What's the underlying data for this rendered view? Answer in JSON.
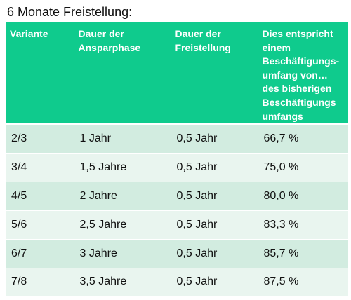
{
  "title": "6 Monate Freistellung:",
  "table": {
    "headers": [
      "Variante",
      "Dauer der Ansparphase",
      "Dauer der Freistellung",
      "Dies entspricht einem Beschäftigungs­umfang von… des bisherigen Beschäftigungs umfangs"
    ],
    "rows": [
      [
        "2/3",
        "1 Jahr",
        "0,5 Jahr",
        "66,7 %"
      ],
      [
        "3/4",
        "1,5 Jahre",
        "0,5 Jahr",
        "75,0 %"
      ],
      [
        "4/5",
        "2 Jahre",
        "0,5 Jahr",
        "80,0 %"
      ],
      [
        "5/6",
        "2,5 Jahre",
        "0,5 Jahr",
        "83,3 %"
      ],
      [
        "6/7",
        "3 Jahre",
        "0,5 Jahr",
        "85,7 %"
      ],
      [
        "7/8",
        "3,5 Jahre",
        "0,5 Jahr",
        "87,5 %"
      ]
    ]
  },
  "colors": {
    "header_bg": "#0fcb8d",
    "header_text": "#ffffff",
    "row_odd_bg": "#d2ece0",
    "row_even_bg": "#e9f5ef"
  }
}
